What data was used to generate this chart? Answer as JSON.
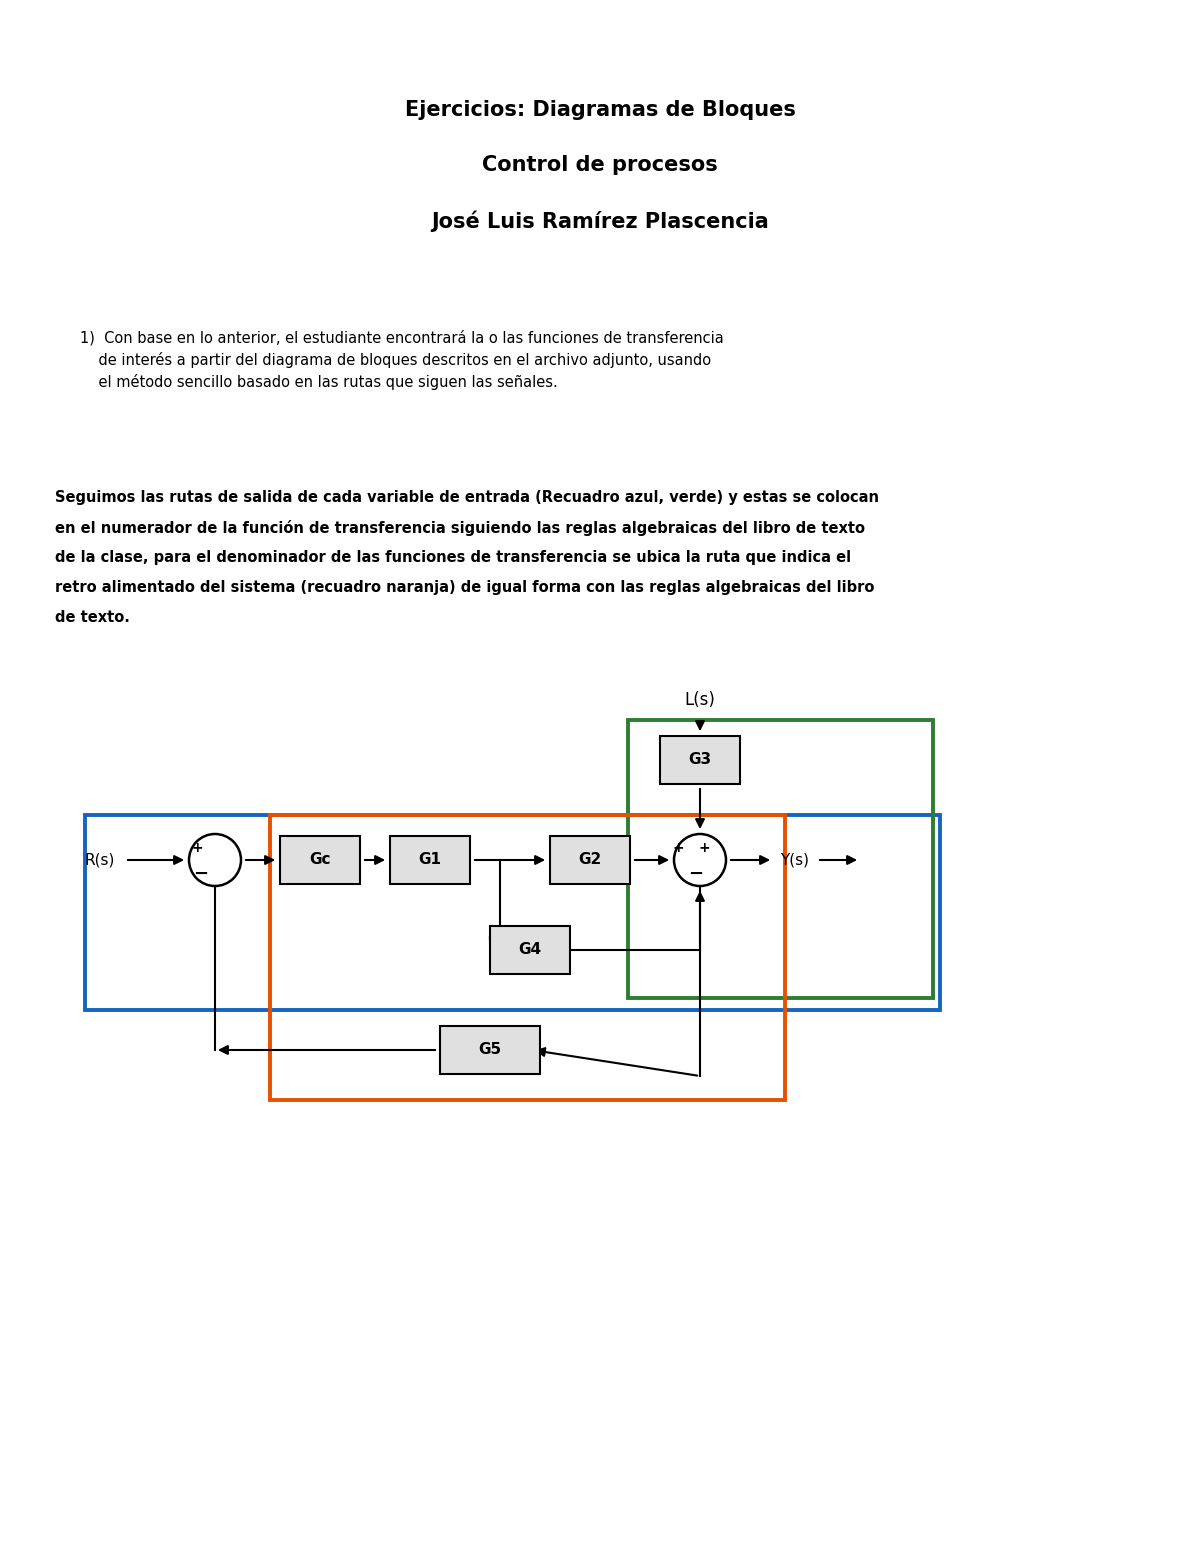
{
  "title1": "Ejercicios: Diagramas de Bloques",
  "title2": "Control de procesos",
  "title3": "José Luis Ramírez Plascencia",
  "p1_line1": "1)  Con base en lo anterior, el estudiante encontrará la o las funciones de transferencia",
  "p1_line2": "    de interés a partir del diagrama de bloques descritos en el archivo adjunto, usando",
  "p1_line3": "    el método sencillo basado en las rutas que siguen las señales.",
  "p2_line1": "Seguimos las rutas de salida de cada variable de entrada (Recuadro azul, verde) y estas se colocan",
  "p2_line2": "en el numerador de la función de transferencia siguiendo las reglas algebraicas del libro de texto",
  "p2_line3": "de la clase, para el denominador de las funciones de transferencia se ubica la ruta que indica el",
  "p2_line4": "retro alimentado del sistema (recuadro naranja) de igual forma con las reglas algebraicas del libro",
  "p2_line5": "de texto.",
  "bg_color": "#ffffff",
  "text_color": "#000000",
  "blue_rect_color": "#1565c0",
  "green_rect_color": "#2e7d32",
  "orange_rect_color": "#e65100",
  "block_border_color": "#000000",
  "block_fill_color": "#e0e0e0",
  "arrow_color": "#000000",
  "sum_color": "#000000",
  "title1_fs": 15,
  "title2_fs": 15,
  "title3_fs": 15,
  "body_fs": 10.5,
  "bold_fs": 10.5,
  "diagram_block_fs": 11
}
